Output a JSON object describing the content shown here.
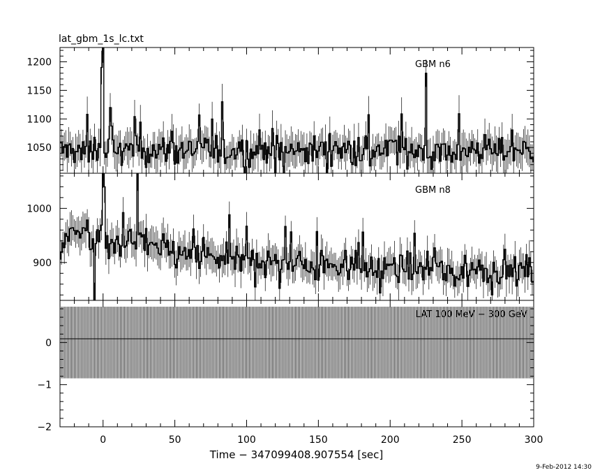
{
  "chart_data": {
    "type": "line",
    "title": "lat_gbm_1s_lc.txt",
    "xlabel": "Time − 347099408.907554 [sec]",
    "xlim": [
      -30,
      300
    ],
    "xticks": [
      "0",
      "50",
      "100",
      "150",
      "200",
      "250",
      "300"
    ],
    "timestamp": "9-Feb-2012 14:30",
    "panels": [
      {
        "name": "GBM n6",
        "ylim": [
          1005,
          1225
        ],
        "yticks": [
          "1050",
          "1100",
          "1150",
          "1200"
        ],
        "baseline": 1045,
        "noise": 22,
        "spikes": [
          [
            0,
            1225
          ],
          [
            -1,
            1190
          ],
          [
            225,
            1180
          ],
          [
            5,
            1120
          ],
          [
            83,
            1130
          ]
        ]
      },
      {
        "name": "GBM n8",
        "ylim": [
          830,
          1065
        ],
        "yticks": [
          "900",
          "1000"
        ],
        "baseline": 920,
        "noise": 22,
        "trend": [
          [
            -30,
            925
          ],
          [
            -20,
            960
          ],
          [
            -10,
            950
          ],
          [
            0,
            940
          ],
          [
            10,
            935
          ],
          [
            30,
            940
          ],
          [
            50,
            915
          ],
          [
            100,
            905
          ],
          [
            200,
            890
          ],
          [
            300,
            885
          ]
        ],
        "spikes": [
          [
            0,
            1065
          ],
          [
            24,
            1065
          ],
          [
            -6,
            830
          ],
          [
            1,
            1040
          ]
        ]
      },
      {
        "name": "LAT 100 MeV − 300 GeV",
        "ylim": [
          -2,
          1
        ],
        "yticks": [
          "−2",
          "−1",
          "0"
        ],
        "style": "dense-bars",
        "bar_range": [
          -0.85,
          0.85
        ]
      }
    ]
  }
}
